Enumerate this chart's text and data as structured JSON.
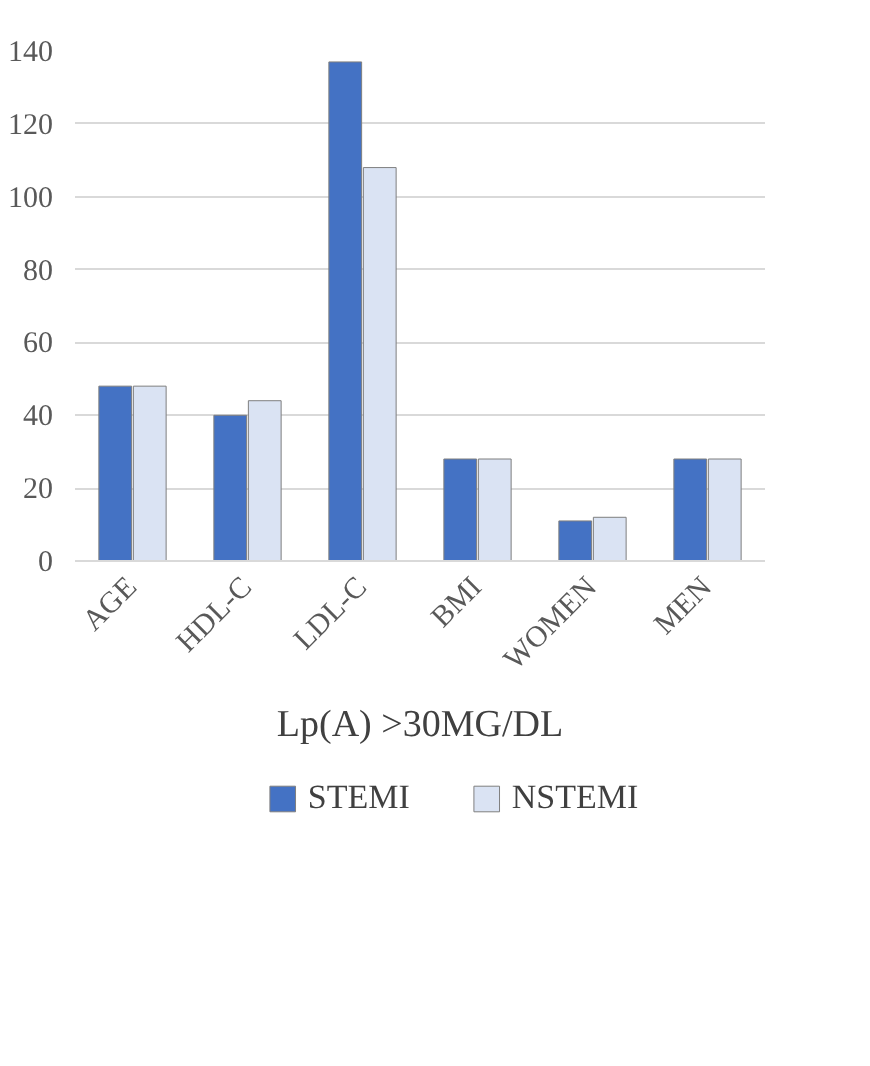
{
  "chart_data": {
    "type": "bar",
    "xlabel": "Lp(A) >30MG/DL",
    "categories": [
      "AGE",
      "HDL-C",
      "LDL-C",
      "BMI",
      "WOMEN",
      "MEN"
    ],
    "series": [
      {
        "name": "STEMI",
        "color": "#4472c4",
        "values": [
          48,
          40,
          137,
          28,
          11,
          28
        ]
      },
      {
        "name": "NSTEMI",
        "color": "#dae3f3",
        "values": [
          48,
          44,
          108,
          28,
          12,
          28
        ]
      }
    ],
    "ylim": [
      0,
      140
    ],
    "yticks": [
      0,
      20,
      40,
      60,
      80,
      100,
      120,
      140
    ],
    "grid": "y",
    "legend": "bottom"
  }
}
